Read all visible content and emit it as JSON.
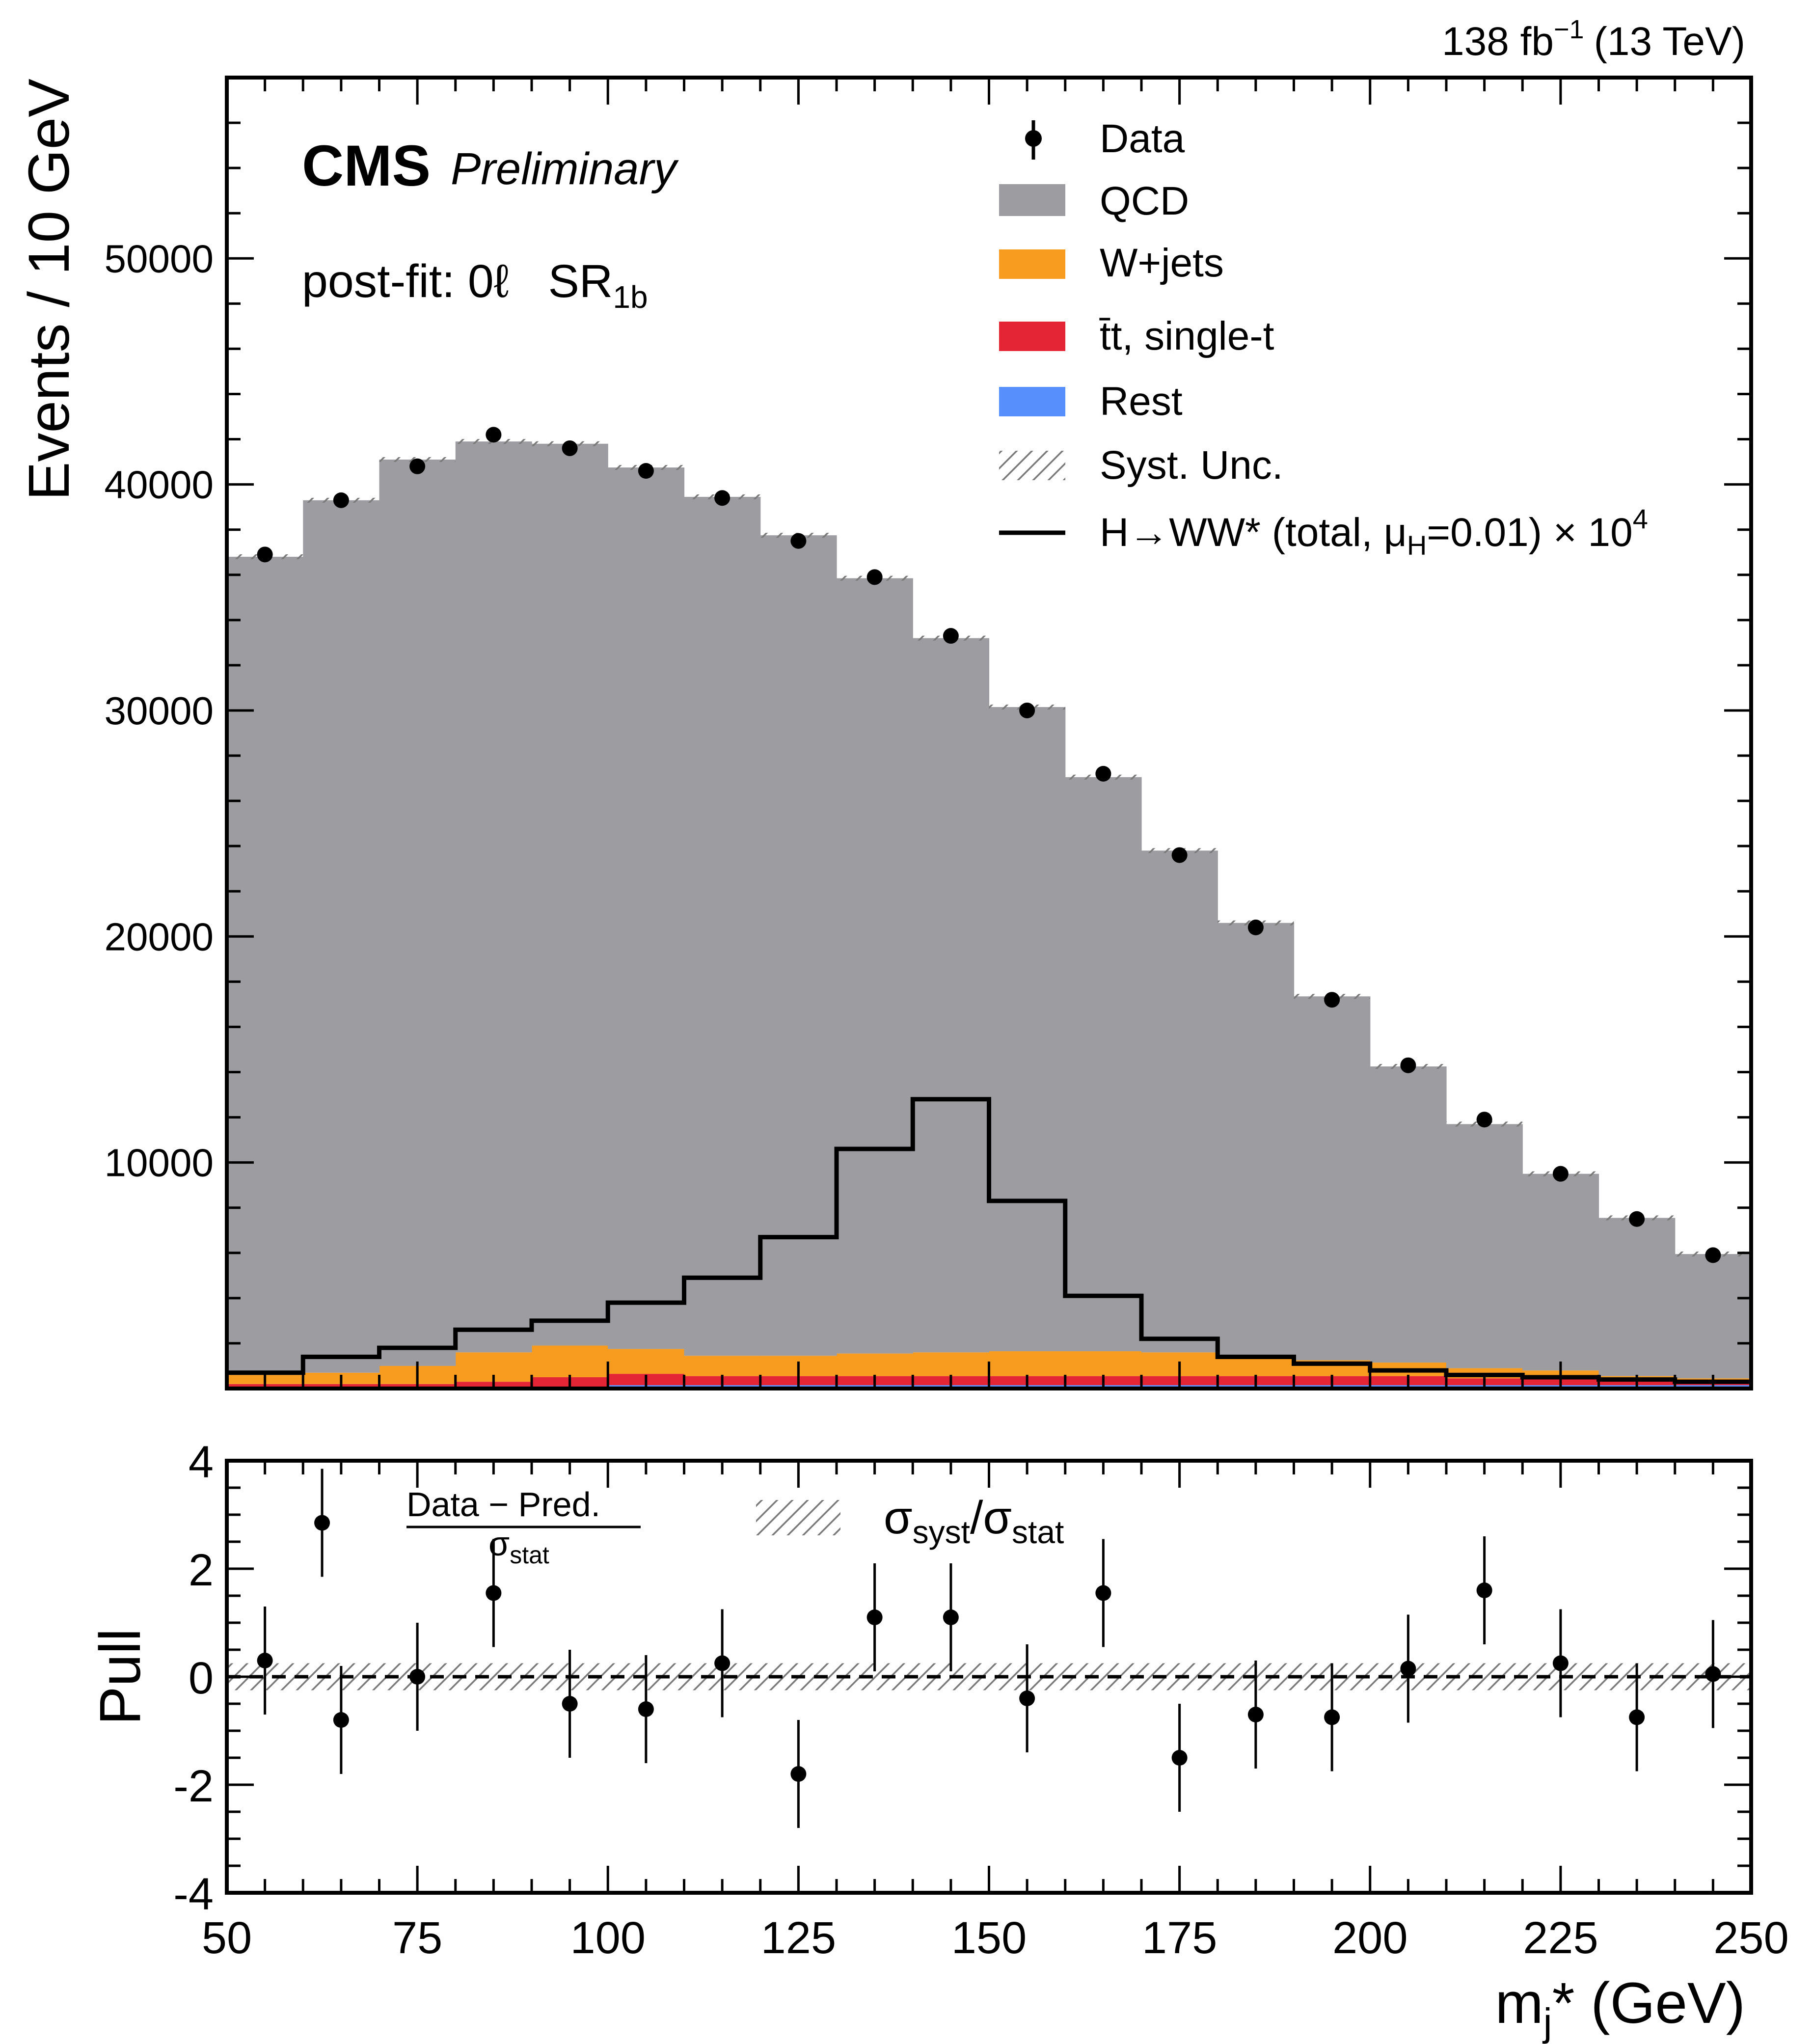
{
  "header": {
    "lumi": "138 fb",
    "lumi_exp": "−1",
    "energy": "(13 TeV)"
  },
  "labels": {
    "cms": "CMS",
    "preliminary": "Preliminary",
    "region_prefix": "post-fit: 0ℓ",
    "region_main": "SR",
    "region_sub": "1b",
    "pull_numerator": "Data  −  Pred.",
    "pull_denominator": "σ",
    "pull_denominator_sub": "stat",
    "syst_ratio_main": "σ",
    "syst_ratio_sub1": "syst",
    "syst_ratio_slash": "/σ",
    "syst_ratio_sub2": "stat"
  },
  "legend": {
    "data": "Data",
    "qcd": "QCD",
    "wjets": "W+jets",
    "ttbar": "t̄t, single-t",
    "rest": "Rest",
    "syst": "Syst. Unc.",
    "signal_main": "H→WW* (total, μ",
    "signal_sub": "H",
    "signal_tail": "=0.01) × 10",
    "signal_exp": "4"
  },
  "colors": {
    "qcd": "#9c9ca1",
    "wjets": "#f89c20",
    "ttbar": "#e42536",
    "rest": "#5790fc",
    "signal": "#000000",
    "data": "#000000"
  },
  "chart_data": {
    "type": "bar",
    "stacked": true,
    "x_edges": [
      50,
      60,
      70,
      80,
      90,
      100,
      110,
      120,
      130,
      140,
      150,
      160,
      170,
      180,
      190,
      200,
      210,
      220,
      230,
      240,
      250
    ],
    "bin_centers": [
      55,
      65,
      75,
      85,
      95,
      105,
      115,
      125,
      135,
      145,
      155,
      165,
      175,
      185,
      195,
      205,
      215,
      225,
      235,
      245
    ],
    "series": [
      {
        "name": "Rest",
        "values": [
          0,
          0,
          0,
          0,
          0,
          150,
          150,
          150,
          150,
          150,
          150,
          150,
          150,
          150,
          150,
          150,
          150,
          150,
          150,
          150
        ]
      },
      {
        "name": "tt, single-t",
        "values": [
          200,
          200,
          200,
          300,
          500,
          500,
          400,
          400,
          400,
          400,
          400,
          400,
          400,
          400,
          400,
          400,
          300,
          300,
          200,
          200
        ]
      },
      {
        "name": "W+jets",
        "values": [
          400,
          500,
          800,
          1300,
          1400,
          1100,
          900,
          900,
          1000,
          1050,
          1100,
          1100,
          1050,
          850,
          700,
          600,
          450,
          350,
          200,
          100
        ]
      },
      {
        "name": "QCD",
        "values": [
          36200,
          38600,
          40100,
          40300,
          39900,
          39000,
          38000,
          36300,
          34300,
          31600,
          28500,
          25400,
          22200,
          19200,
          16100,
          13100,
          10800,
          8700,
          7000,
          5500
        ]
      }
    ],
    "signal": {
      "name": "H→WW* (total, μH=0.01) × 10^4",
      "values": [
        700,
        1400,
        1800,
        2600,
        3000,
        3800,
        4900,
        6700,
        10600,
        12800,
        8300,
        4100,
        2200,
        1400,
        1100,
        800,
        600,
        500,
        400,
        300
      ]
    },
    "data": {
      "values": [
        36900,
        39300,
        40800,
        42200,
        41600,
        40600,
        39400,
        37500,
        35900,
        33300,
        30000,
        27200,
        23600,
        20400,
        17200,
        14300,
        11900,
        9500,
        7500,
        5900
      ]
    },
    "xlabel": "m",
    "xlabel_sub": "j",
    "xlabel_tail": "* (GeV)",
    "ylabel": "Events / 10 GeV",
    "xlim": [
      50,
      250
    ],
    "ylim": [
      0,
      58000
    ],
    "x_ticks": [
      50,
      75,
      100,
      125,
      150,
      175,
      200,
      225,
      250
    ],
    "x_tick_labels": [
      "50",
      "75",
      "100",
      "125",
      "150",
      "175",
      "200",
      "225",
      "250"
    ],
    "y_ticks": [
      10000,
      20000,
      30000,
      40000,
      50000
    ],
    "y_tick_labels": [
      "10000",
      "20000",
      "30000",
      "40000",
      "50000"
    ],
    "pull": {
      "ylabel": "Pull",
      "ylim": [
        -4,
        4
      ],
      "y_ticks": [
        -4,
        -2,
        0,
        2,
        4
      ],
      "y_tick_labels": [
        "-4",
        "-2",
        "0",
        "2",
        "4"
      ],
      "x": [
        55,
        62.5,
        65,
        75,
        85,
        95,
        105,
        115,
        125,
        135,
        145,
        155,
        165,
        175,
        185,
        195,
        205,
        215,
        225,
        235,
        245
      ],
      "values": [
        0.3,
        2.85,
        -0.8,
        0.0,
        1.55,
        -0.5,
        -0.6,
        0.25,
        -1.8,
        1.1,
        1.1,
        -0.4,
        1.55,
        -1.5,
        -0.7,
        -0.75,
        0.15,
        1.6,
        0.25,
        -0.75,
        0.05
      ],
      "syst_band": 0.25
    }
  }
}
